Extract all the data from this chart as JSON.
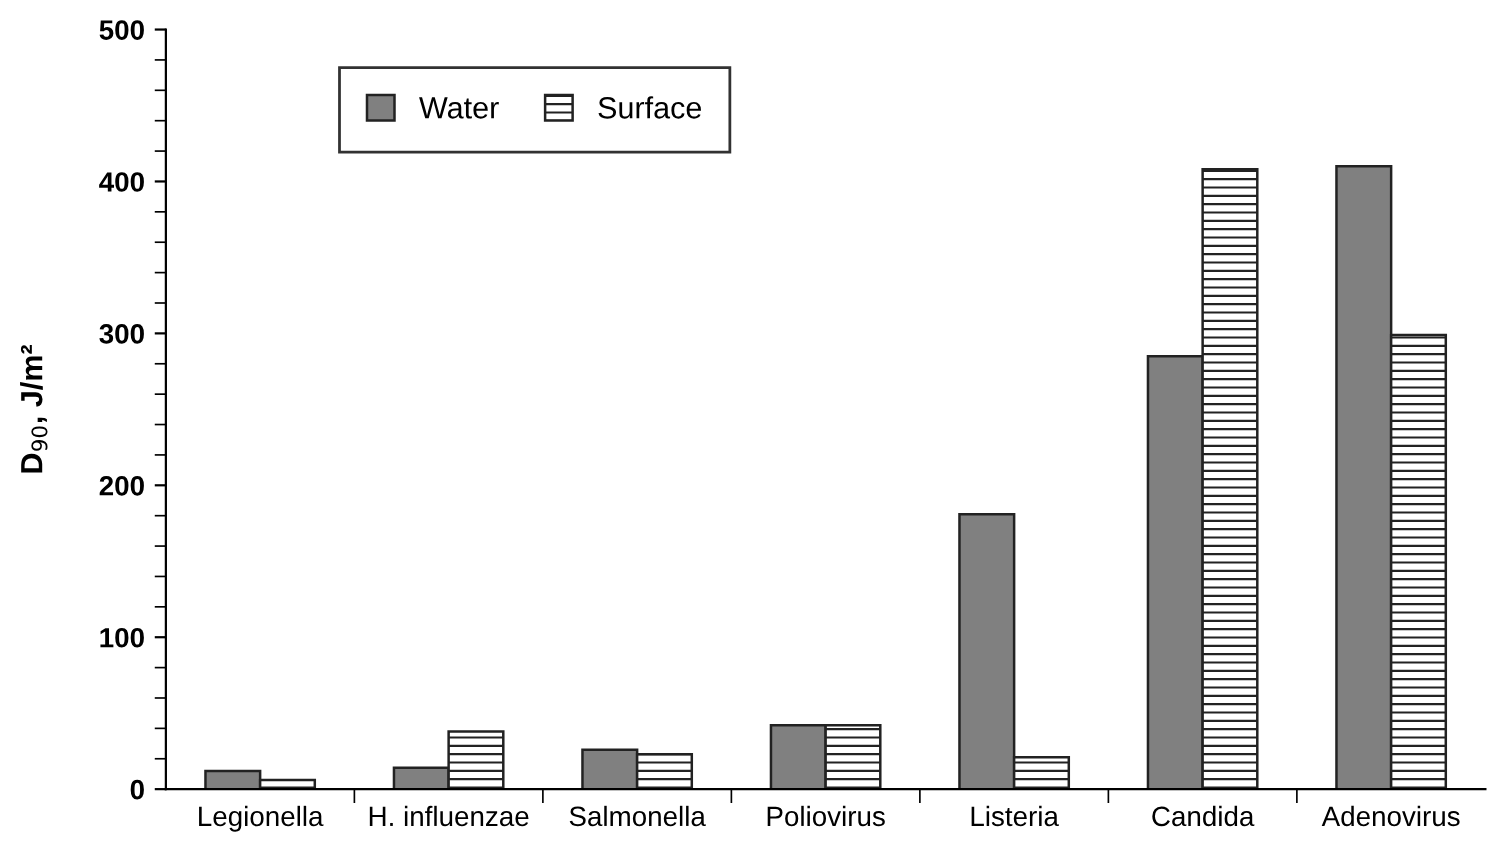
{
  "chart_data": {
    "type": "bar",
    "ylabel": "D$_{90}$, J/m²",
    "categories": [
      "Legionella",
      "H. influenzae",
      "Salmonella",
      "Poliovirus",
      "Listeria",
      "Candida",
      "Adenovirus"
    ],
    "series": [
      {
        "name": "Water",
        "color": "#808080",
        "values": [
          12,
          14,
          26,
          42,
          181,
          285,
          410
        ]
      },
      {
        "name": "Surface",
        "color": "#222222",
        "values": [
          6,
          38,
          23,
          42,
          21,
          408,
          299
        ]
      }
    ],
    "ylim": [
      0,
      500
    ],
    "yticks": [
      0,
      100,
      200,
      300,
      400,
      500
    ],
    "grid": false,
    "legend": "top left"
  }
}
